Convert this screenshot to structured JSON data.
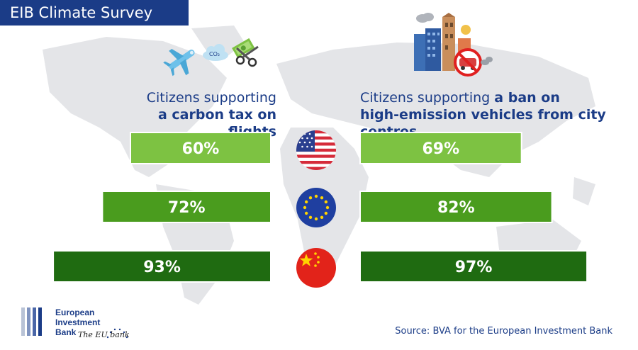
{
  "title": "EIB Climate Survey",
  "left_headline": {
    "line1": "Citizens supporting",
    "line2": "a carbon tax on flights"
  },
  "right_headline": {
    "line1_regular": "Citizens supporting ",
    "line1_bold": "a ban on",
    "line2": "high-emission vehicles from city centres"
  },
  "chart_data": [
    {
      "type": "bar",
      "title": "Citizens supporting a carbon tax on flights",
      "categories": [
        "United States",
        "European Union",
        "China"
      ],
      "values": [
        60,
        72,
        93
      ],
      "labels": [
        "60%",
        "72%",
        "93%"
      ],
      "colors": [
        "#7dc242",
        "#4a9c1e",
        "#1f6b11"
      ]
    },
    {
      "type": "bar",
      "title": "Citizens supporting a ban on high-emission vehicles from city centres",
      "categories": [
        "United States",
        "European Union",
        "China"
      ],
      "values": [
        69,
        82,
        97
      ],
      "labels": [
        "69%",
        "82%",
        "97%"
      ],
      "colors": [
        "#7dc242",
        "#4a9c1e",
        "#1f6b11"
      ]
    }
  ],
  "icons": [
    "plane-icon",
    "co2-cloud-icon",
    "scissors-money-icon",
    "city-buildings-icon",
    "no-car-icon",
    "us-flag-icon",
    "eu-flag-icon",
    "china-flag-icon"
  ],
  "footer": {
    "org_line1": "European",
    "org_line2": "Investment",
    "org_line3": "Bank",
    "tagline": "The EU bank",
    "source": "Source: BVA for the European Investment Bank"
  },
  "colors": {
    "brand_blue": "#1b3c87",
    "map_gray": "#e4e5e8"
  }
}
